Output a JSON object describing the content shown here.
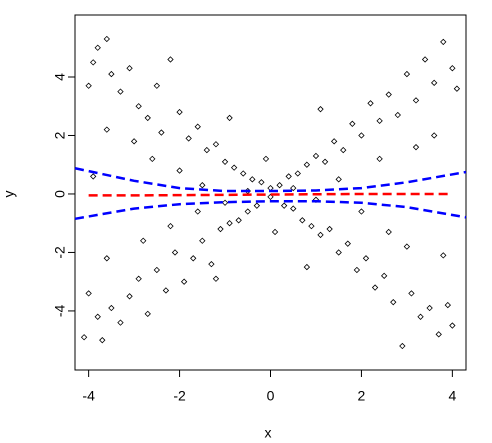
{
  "chart_data": {
    "type": "scatter",
    "x_label": "x",
    "y_label": "y",
    "xlim": [
      -4.3,
      4.3
    ],
    "ylim": [
      -6.02,
      6.12
    ],
    "xticks": [
      -4,
      -2,
      0,
      2,
      4
    ],
    "yticks": [
      -4,
      -2,
      0,
      2,
      4
    ],
    "point_color": "#000000",
    "x": [
      -4.0,
      -3.9,
      -3.8,
      -3.6,
      -3.5,
      -3.3,
      -3.1,
      -2.9,
      -2.7,
      -2.5,
      -2.4,
      -2.2,
      -2.0,
      -1.8,
      -1.6,
      -1.4,
      -1.2,
      -1.0,
      -0.8,
      -0.6,
      -0.4,
      -0.2,
      -4.1,
      -4.0,
      -3.8,
      -3.7,
      -3.5,
      -3.3,
      -3.1,
      -2.9,
      -2.7,
      -2.5,
      -2.3,
      -2.1,
      -1.9,
      -1.7,
      -1.5,
      -1.3,
      -1.1,
      -0.9,
      -0.7,
      -0.5,
      -0.3,
      0.2,
      0.4,
      0.6,
      0.8,
      1.0,
      1.2,
      1.4,
      1.6,
      1.8,
      2.0,
      2.2,
      2.4,
      2.6,
      2.8,
      3.0,
      3.2,
      3.4,
      3.6,
      3.8,
      4.0,
      4.1,
      0.3,
      0.5,
      0.7,
      0.9,
      1.1,
      1.3,
      1.5,
      1.7,
      1.9,
      2.1,
      2.3,
      2.5,
      2.7,
      2.9,
      3.1,
      3.3,
      3.5,
      3.7,
      3.9,
      4.0,
      -3.6,
      -3.0,
      -2.6,
      -2.0,
      -1.5,
      -1.0,
      -0.5,
      0,
      0,
      0.5,
      1.0,
      1.5,
      2.0,
      2.6,
      3.0,
      3.6,
      -3.6,
      -2.8,
      -2.2,
      -1.6,
      2.4,
      3.2,
      -3.9,
      3.8,
      -0.1,
      0.1,
      -0.9,
      1.1,
      -1.2,
      0.8
    ],
    "y": [
      3.7,
      4.5,
      5.0,
      5.3,
      4.1,
      3.5,
      4.3,
      3.0,
      2.6,
      3.7,
      2.1,
      4.6,
      2.8,
      1.9,
      2.3,
      1.5,
      1.7,
      1.1,
      0.9,
      0.7,
      0.5,
      0.4,
      -4.9,
      -3.4,
      -4.2,
      -5.0,
      -3.9,
      -4.4,
      -3.5,
      -2.9,
      -4.1,
      -2.6,
      -3.3,
      -2.0,
      -3.0,
      -2.2,
      -1.6,
      -2.4,
      -1.2,
      -1.0,
      -0.9,
      -0.6,
      -0.4,
      0.3,
      0.6,
      0.7,
      1.0,
      1.3,
      1.1,
      1.8,
      1.5,
      2.4,
      2.0,
      3.1,
      2.5,
      3.4,
      2.7,
      4.1,
      3.2,
      4.6,
      3.8,
      5.2,
      4.3,
      3.6,
      -0.4,
      -0.5,
      -0.9,
      -1.1,
      -1.4,
      -1.2,
      -2.0,
      -1.7,
      -2.6,
      -2.2,
      -3.2,
      -2.8,
      -3.7,
      -5.2,
      -3.4,
      -4.2,
      -3.9,
      -4.8,
      -3.8,
      -4.5,
      2.2,
      1.8,
      1.2,
      0.8,
      0.3,
      -0.3,
      0.1,
      0.2,
      -0.1,
      0.2,
      -0.2,
      0.5,
      -0.6,
      -1.3,
      -1.8,
      2.0,
      -2.2,
      -1.6,
      -1.1,
      -0.6,
      1.2,
      1.6,
      0.6,
      -2.1,
      1.2,
      -1.3,
      2.6,
      2.9,
      -2.9,
      -2.5
    ],
    "lines": [
      {
        "color": "#ff0000",
        "x": [
          -4.0,
          -3,
          -2,
          -1,
          0,
          1,
          2,
          3,
          4.0
        ],
        "values": [
          -0.05,
          -0.05,
          -0.04,
          -0.03,
          -0.02,
          -0.01,
          0,
          0,
          0
        ]
      },
      {
        "color": "#0000ff",
        "x": [
          -4.3,
          -3,
          -2,
          -1,
          0,
          1,
          2,
          3,
          4.3
        ],
        "values": [
          0.88,
          0.45,
          0.2,
          0.1,
          0.1,
          0.12,
          0.2,
          0.4,
          0.75
        ]
      },
      {
        "color": "#0000ff",
        "x": [
          -4.3,
          -3,
          -2,
          -1,
          0,
          1,
          2,
          3,
          4.3
        ],
        "values": [
          -0.85,
          -0.5,
          -0.35,
          -0.28,
          -0.25,
          -0.25,
          -0.3,
          -0.45,
          -0.8
        ]
      }
    ]
  }
}
